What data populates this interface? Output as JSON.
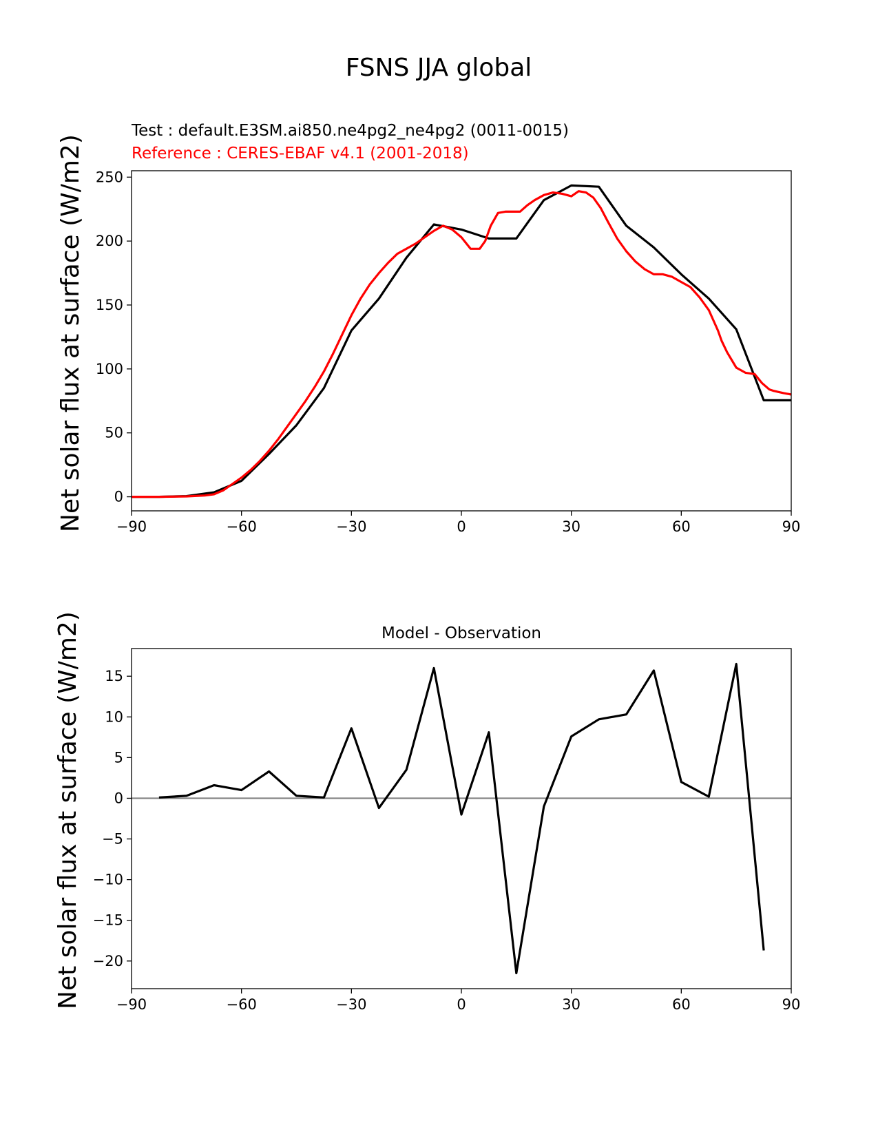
{
  "figure": {
    "suptitle": "FSNS JJA global"
  },
  "chart_data": [
    {
      "type": "line",
      "title_test": "Test : default.E3SM.ai850.ne4pg2_ne4pg2 (0011-0015)",
      "title_reference": "Reference : CERES-EBAF v4.1 (2001-2018)",
      "xlabel": "",
      "ylabel": "Net solar flux at surface (W/m2)",
      "xlim": [
        -90,
        90
      ],
      "ylim": [
        -11,
        255
      ],
      "xticks": [
        -90,
        -60,
        -30,
        0,
        30,
        60,
        90
      ],
      "xtick_labels": [
        "−90",
        "−60",
        "−30",
        "0",
        "30",
        "60",
        "90"
      ],
      "yticks": [
        0,
        50,
        100,
        150,
        200,
        250
      ],
      "ytick_labels": [
        "0",
        "50",
        "100",
        "150",
        "200",
        "250"
      ],
      "colors": {
        "test": "#000000",
        "reference": "#ff0000"
      },
      "series": [
        {
          "name": "test",
          "color": "#000000",
          "x": [
            -90,
            -82.5,
            -75,
            -67.5,
            -60,
            -52.5,
            -45,
            -37.5,
            -30,
            -22.5,
            -15,
            -7.5,
            0,
            7.5,
            15,
            22.5,
            30,
            37.5,
            45,
            52.5,
            60,
            67.5,
            75,
            82.5,
            90
          ],
          "y": [
            0,
            0,
            0.5,
            3.5,
            12.5,
            33.5,
            56,
            85,
            130,
            155,
            187,
            213,
            209,
            202,
            202,
            232,
            243.5,
            242.5,
            212,
            195,
            174,
            155,
            131,
            75.5,
            75.5
          ]
        },
        {
          "name": "reference",
          "color": "#ff0000",
          "x": [
            -90,
            -82.5,
            -75,
            -70,
            -67.5,
            -65,
            -62.5,
            -60,
            -57.5,
            -55,
            -52.5,
            -50,
            -47.5,
            -45,
            -42.5,
            -40,
            -37.5,
            -35,
            -32.5,
            -30,
            -27.5,
            -25,
            -22.5,
            -20,
            -17.5,
            -15,
            -12.5,
            -10,
            -7.5,
            -5,
            -2.5,
            0,
            2.5,
            5,
            6.5,
            8,
            10,
            12,
            14,
            16,
            18,
            20,
            22.5,
            25,
            27.5,
            30,
            32,
            34,
            36,
            38,
            40,
            42.5,
            45,
            47.5,
            50,
            52.5,
            55,
            57.5,
            60,
            62.5,
            65,
            67.5,
            70,
            71,
            72.5,
            75,
            77.5,
            80,
            82,
            84,
            85,
            86.5,
            88,
            90
          ],
          "y": [
            0,
            0,
            0.3,
            1,
            2,
            5,
            10,
            15,
            21,
            28,
            36,
            45,
            55,
            65,
            75,
            86,
            98,
            112,
            127,
            142,
            155,
            166,
            175,
            183,
            190,
            194,
            198,
            203,
            208,
            212,
            209,
            203,
            194,
            194,
            200,
            212,
            222,
            223,
            223,
            223,
            228,
            232,
            236,
            238,
            237,
            235,
            239,
            238,
            234,
            226,
            215,
            202,
            192,
            184,
            178,
            174,
            174,
            172,
            168,
            164,
            156,
            146,
            130,
            122,
            113,
            101,
            97,
            96,
            89,
            84,
            83,
            82,
            81,
            80
          ]
        }
      ]
    },
    {
      "type": "line",
      "title": "Model - Observation",
      "xlabel": "",
      "ylabel": "Net solar flux at surface (W/m2)",
      "xlim": [
        -90,
        90
      ],
      "ylim": [
        -23.4,
        18.4
      ],
      "xticks": [
        -90,
        -60,
        -30,
        0,
        30,
        60,
        90
      ],
      "xtick_labels": [
        "−90",
        "−60",
        "−30",
        "0",
        "30",
        "60",
        "90"
      ],
      "yticks": [
        -20,
        -15,
        -10,
        -5,
        0,
        5,
        10,
        15
      ],
      "ytick_labels": [
        "−20",
        "−15",
        "−10",
        "−5",
        "0",
        "5",
        "10",
        "15"
      ],
      "zero_line_color": "#808080",
      "series": [
        {
          "name": "difference",
          "color": "#000000",
          "x": [
            -82.5,
            -75,
            -67.5,
            -60,
            -52.5,
            -45,
            -37.5,
            -30,
            -22.5,
            -15,
            -7.5,
            0,
            7.5,
            15,
            22.5,
            30,
            37.5,
            45,
            52.5,
            60,
            67.5,
            75,
            82.5
          ],
          "y": [
            0.1,
            0.3,
            1.6,
            1.0,
            3.3,
            0.3,
            0.1,
            8.6,
            -1.2,
            3.5,
            16.0,
            -2.0,
            8.1,
            -21.5,
            -1.0,
            7.6,
            9.7,
            10.3,
            15.7,
            2.0,
            0.2,
            16.5,
            -18.7
          ]
        }
      ]
    }
  ]
}
